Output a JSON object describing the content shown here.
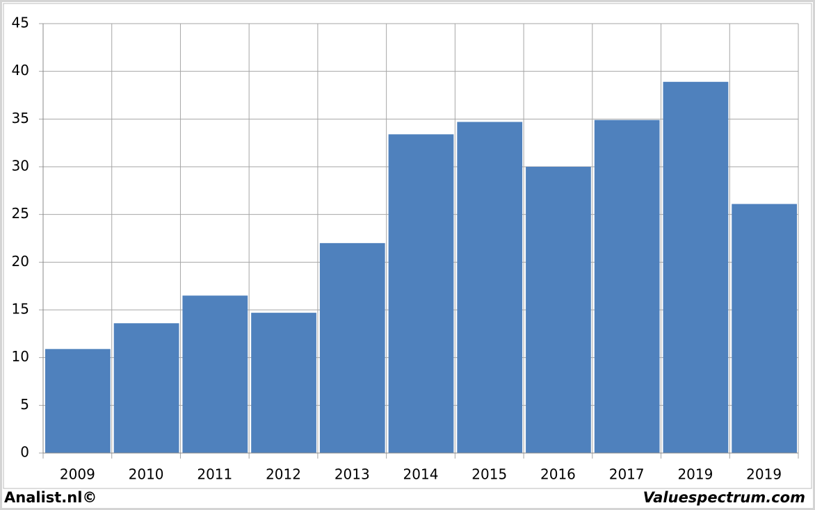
{
  "chart_data": {
    "type": "bar",
    "categories": [
      "2009",
      "2010",
      "2011",
      "2012",
      "2013",
      "2014",
      "2015",
      "2016",
      "2017",
      "2019",
      "2019"
    ],
    "values": [
      10.9,
      13.6,
      16.5,
      14.7,
      22.0,
      33.4,
      34.7,
      30.0,
      34.9,
      38.9,
      26.1
    ],
    "color": "#4f81bd",
    "ylim": [
      0,
      45
    ],
    "yticks": [
      0,
      5,
      10,
      15,
      20,
      25,
      30,
      35,
      40,
      45
    ],
    "grid": true
  },
  "footer": {
    "left": "Analist.nl©",
    "right": "Valuespectrum.com"
  }
}
